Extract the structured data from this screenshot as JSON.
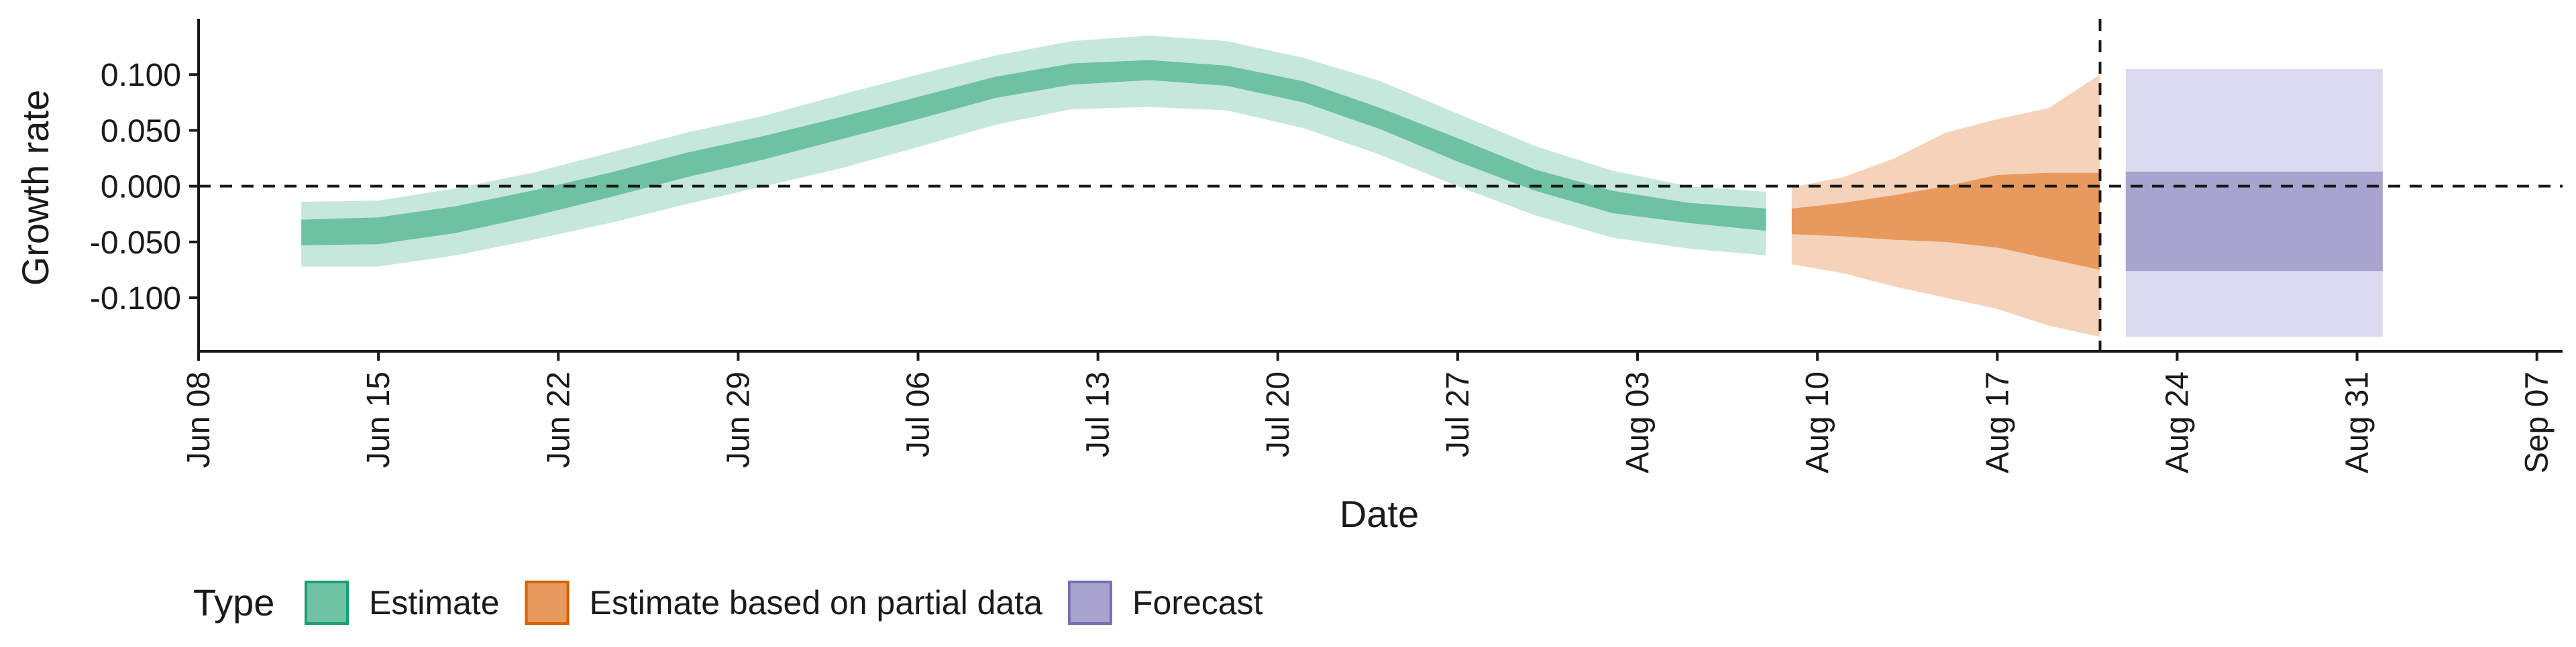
{
  "chart_data": {
    "type": "area",
    "xlabel": "Date",
    "ylabel": "Growth rate",
    "x_axis": {
      "type": "date",
      "range": [
        "2020-06-08",
        "2020-09-08"
      ],
      "ticks": [
        {
          "date": "2020-06-08",
          "label": "Jun 08"
        },
        {
          "date": "2020-06-15",
          "label": "Jun 15"
        },
        {
          "date": "2020-06-22",
          "label": "Jun 22"
        },
        {
          "date": "2020-06-29",
          "label": "Jun 29"
        },
        {
          "date": "2020-07-06",
          "label": "Jul 06"
        },
        {
          "date": "2020-07-13",
          "label": "Jul 13"
        },
        {
          "date": "2020-07-20",
          "label": "Jul 20"
        },
        {
          "date": "2020-07-27",
          "label": "Jul 27"
        },
        {
          "date": "2020-08-03",
          "label": "Aug 03"
        },
        {
          "date": "2020-08-10",
          "label": "Aug 10"
        },
        {
          "date": "2020-08-17",
          "label": "Aug 17"
        },
        {
          "date": "2020-08-24",
          "label": "Aug 24"
        },
        {
          "date": "2020-08-31",
          "label": "Aug 31"
        },
        {
          "date": "2020-09-07",
          "label": "Sep 07"
        }
      ]
    },
    "y_axis": {
      "range": [
        -0.148,
        0.15
      ],
      "ticks": [
        {
          "value": 0.1,
          "label": "0.100"
        },
        {
          "value": 0.05,
          "label": "0.050"
        },
        {
          "value": 0.0,
          "label": "0.000"
        },
        {
          "value": -0.05,
          "label": "-0.050"
        },
        {
          "value": -0.1,
          "label": "-0.100"
        }
      ]
    },
    "reference_lines": {
      "horizontal_zero": 0.0,
      "vertical_date": "2020-08-21"
    },
    "grid": false,
    "legend": {
      "title": "Type",
      "position": "bottom-left",
      "entries": [
        {
          "label": "Estimate",
          "fill": "#6fc1a3",
          "border": "#1b9e77"
        },
        {
          "label": "Estimate based on partial data",
          "fill": "#e8995e",
          "border": "#d95f02"
        },
        {
          "label": "Forecast",
          "fill": "#a8a4cf",
          "border": "#7570b3"
        }
      ]
    },
    "series": [
      {
        "name": "Estimate",
        "color_outer": "#c6e7db",
        "color_inner": "#6fc1a3",
        "points": [
          {
            "x": "2020-06-12",
            "outer": [
              -0.072,
              -0.014
            ],
            "inner": [
              -0.053,
              -0.03
            ]
          },
          {
            "x": "2020-06-15",
            "outer": [
              -0.072,
              -0.013
            ],
            "inner": [
              -0.052,
              -0.028
            ]
          },
          {
            "x": "2020-06-18",
            "outer": [
              -0.062,
              -0.002
            ],
            "inner": [
              -0.042,
              -0.018
            ]
          },
          {
            "x": "2020-06-21",
            "outer": [
              -0.048,
              0.012
            ],
            "inner": [
              -0.027,
              -0.004
            ]
          },
          {
            "x": "2020-06-24",
            "outer": [
              -0.033,
              0.03
            ],
            "inner": [
              -0.01,
              0.012
            ]
          },
          {
            "x": "2020-06-27",
            "outer": [
              -0.016,
              0.048
            ],
            "inner": [
              0.008,
              0.03
            ]
          },
          {
            "x": "2020-06-30",
            "outer": [
              0.0,
              0.063
            ],
            "inner": [
              0.024,
              0.045
            ]
          },
          {
            "x": "2020-07-03",
            "outer": [
              0.016,
              0.082
            ],
            "inner": [
              0.042,
              0.062
            ]
          },
          {
            "x": "2020-07-06",
            "outer": [
              0.035,
              0.1
            ],
            "inner": [
              0.06,
              0.08
            ]
          },
          {
            "x": "2020-07-09",
            "outer": [
              0.055,
              0.117
            ],
            "inner": [
              0.079,
              0.098
            ]
          },
          {
            "x": "2020-07-12",
            "outer": [
              0.069,
              0.13
            ],
            "inner": [
              0.091,
              0.11
            ]
          },
          {
            "x": "2020-07-15",
            "outer": [
              0.071,
              0.135
            ],
            "inner": [
              0.095,
              0.113
            ]
          },
          {
            "x": "2020-07-18",
            "outer": [
              0.068,
              0.13
            ],
            "inner": [
              0.09,
              0.108
            ]
          },
          {
            "x": "2020-07-21",
            "outer": [
              0.052,
              0.115
            ],
            "inner": [
              0.075,
              0.094
            ]
          },
          {
            "x": "2020-07-24",
            "outer": [
              0.028,
              0.094
            ],
            "inner": [
              0.051,
              0.07
            ]
          },
          {
            "x": "2020-07-27",
            "outer": [
              0.0,
              0.065
            ],
            "inner": [
              0.022,
              0.043
            ]
          },
          {
            "x": "2020-07-30",
            "outer": [
              -0.026,
              0.036
            ],
            "inner": [
              -0.004,
              0.015
            ]
          },
          {
            "x": "2020-08-02",
            "outer": [
              -0.046,
              0.014
            ],
            "inner": [
              -0.024,
              -0.004
            ]
          },
          {
            "x": "2020-08-05",
            "outer": [
              -0.056,
              0.0
            ],
            "inner": [
              -0.033,
              -0.015
            ]
          },
          {
            "x": "2020-08-08",
            "outer": [
              -0.062,
              -0.005
            ],
            "inner": [
              -0.04,
              -0.02
            ]
          }
        ]
      },
      {
        "name": "Estimate based on partial data",
        "color_outer": "#f5d3bb",
        "color_inner": "#e8995e",
        "points": [
          {
            "x": "2020-08-09",
            "outer": [
              -0.07,
              -0.001
            ],
            "inner": [
              -0.043,
              -0.02
            ]
          },
          {
            "x": "2020-08-11",
            "outer": [
              -0.078,
              0.008
            ],
            "inner": [
              -0.045,
              -0.015
            ]
          },
          {
            "x": "2020-08-13",
            "outer": [
              -0.09,
              0.025
            ],
            "inner": [
              -0.048,
              -0.008
            ]
          },
          {
            "x": "2020-08-15",
            "outer": [
              -0.1,
              0.048
            ],
            "inner": [
              -0.05,
              0.0
            ]
          },
          {
            "x": "2020-08-17",
            "outer": [
              -0.11,
              0.06
            ],
            "inner": [
              -0.055,
              0.01
            ]
          },
          {
            "x": "2020-08-19",
            "outer": [
              -0.125,
              0.07
            ],
            "inner": [
              -0.065,
              0.012
            ]
          },
          {
            "x": "2020-08-21",
            "outer": [
              -0.135,
              0.1
            ],
            "inner": [
              -0.075,
              0.012
            ]
          }
        ]
      },
      {
        "name": "Forecast",
        "color_outer": "#dcdaee",
        "color_inner": "#a8a4cf",
        "points": [
          {
            "x": "2020-08-22",
            "outer": [
              -0.135,
              0.105
            ],
            "inner": [
              -0.076,
              0.013
            ]
          },
          {
            "x": "2020-09-01",
            "outer": [
              -0.135,
              0.105
            ],
            "inner": [
              -0.076,
              0.013
            ]
          }
        ]
      }
    ]
  }
}
